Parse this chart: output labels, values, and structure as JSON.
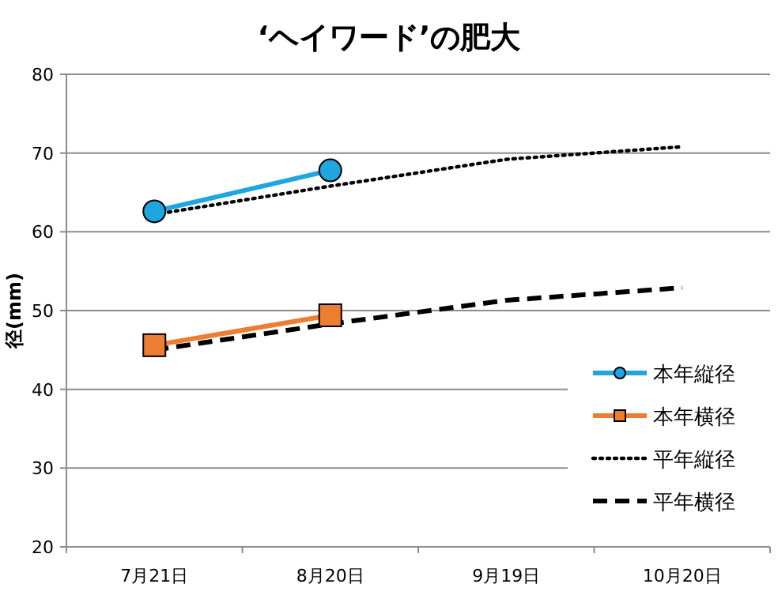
{
  "chart_data": {
    "type": "line",
    "title": "‘ヘイワード’の肥大",
    "ylabel": "径(mm)",
    "categories": [
      "7月21日",
      "8月20日",
      "9月19日",
      "10月20日"
    ],
    "series": [
      {
        "name": "本年縦径",
        "color": "#1fa6e0",
        "values": [
          62.6,
          67.8,
          null,
          null
        ],
        "marker": "circle",
        "line_style": "solid"
      },
      {
        "name": "本年横径",
        "color": "#ed7d31",
        "values": [
          45.6,
          49.4,
          null,
          null
        ],
        "marker": "square",
        "line_style": "solid"
      },
      {
        "name": "平年縦径",
        "color": "#000000",
        "values": [
          62.2,
          65.8,
          69.2,
          70.8
        ],
        "marker": "none",
        "line_style": "dotted"
      },
      {
        "name": "平年横径",
        "color": "#000000",
        "values": [
          45.0,
          48.3,
          51.3,
          52.9
        ],
        "marker": "none",
        "line_style": "dashed"
      }
    ],
    "ylim": [
      20,
      80
    ],
    "yticks": [
      20,
      30,
      40,
      50,
      60,
      70,
      80
    ],
    "grid": "y",
    "legend": "bottom right"
  }
}
